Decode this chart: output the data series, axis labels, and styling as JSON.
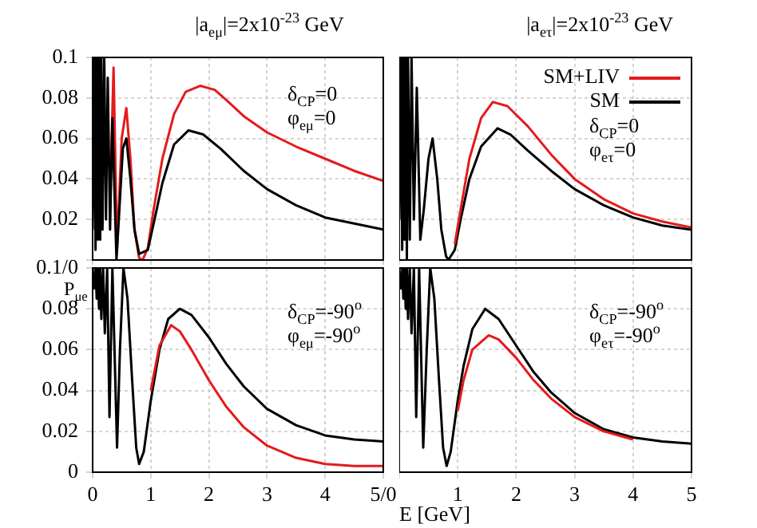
{
  "chart_data": [
    {
      "type": "line",
      "title": "|a$_{eμ}$|=2x10$^{-23}$ GeV",
      "annotations": [
        "δ$_{CP}$=0",
        "φ$_{eμ}$=0"
      ],
      "xlim": [
        0,
        5
      ],
      "xticks": [
        0,
        1,
        2,
        3,
        4,
        5
      ],
      "ylim": [
        0,
        0.1
      ],
      "yticks": [
        {
          "value": 0,
          "label": null
        },
        0.02,
        0.04,
        0.06,
        0.08,
        0.1
      ],
      "tick_labels": "y",
      "grid": true,
      "marker": "none",
      "series": [
        {
          "color": "#000000",
          "x": [
            0,
            0.03,
            0.05,
            0.07,
            0.09,
            0.11,
            0.13,
            0.15,
            0.17,
            0.2,
            0.23,
            0.26,
            0.3,
            0.34,
            0.41,
            0.47,
            0.52,
            0.58,
            0.65,
            0.72,
            0.8,
            0.95,
            1.05,
            1.2,
            1.4,
            1.65,
            1.9,
            2.2,
            2.6,
            3.0,
            3.5,
            4.0,
            4.5,
            5
          ],
          "values": [
            0.015,
            0.1,
            0.005,
            0.1,
            0.01,
            0.1,
            0.01,
            0.1,
            0.015,
            0.1,
            0.02,
            0.09,
            0.015,
            0.07,
            0.0,
            0.03,
            0.055,
            0.06,
            0.04,
            0.015,
            0.003,
            0.005,
            0.018,
            0.038,
            0.057,
            0.064,
            0.062,
            0.055,
            0.044,
            0.035,
            0.027,
            0.021,
            0.018,
            0.015
          ]
        },
        {
          "color": "#e41a1c",
          "x": [
            0.3,
            0.36,
            0.42,
            0.5,
            0.58,
            0.65,
            0.72,
            0.8,
            0.86,
            0.95,
            1.05,
            1.2,
            1.4,
            1.6,
            1.85,
            2.1,
            2.3,
            2.6,
            3.0,
            3.5,
            4.0,
            4.5,
            5
          ],
          "values": [
            0.03,
            0.095,
            0.005,
            0.06,
            0.075,
            0.05,
            0.015,
            0.001,
            0,
            0.006,
            0.025,
            0.05,
            0.072,
            0.083,
            0.086,
            0.084,
            0.079,
            0.071,
            0.063,
            0.056,
            0.05,
            0.044,
            0.039
          ]
        }
      ]
    },
    {
      "type": "line",
      "title": "|a$_{eτ}$|=2x10$^{-23}$ GeV",
      "annotations": [
        "δ$_{CP}$=0",
        "φ$_{eτ}$=0"
      ],
      "xlim": [
        0,
        5
      ],
      "xticks": [
        0,
        1,
        2,
        3,
        4,
        5
      ],
      "ylim": [
        0,
        0.1
      ],
      "yticks": [
        0,
        0.02,
        0.04,
        0.06,
        0.08,
        0.1
      ],
      "tick_labels": false,
      "grid": true,
      "marker": "none",
      "legend": "top right",
      "series": [
        {
          "name": "SM+LIV",
          "color": "#e41a1c",
          "x": [
            0.95,
            1.05,
            1.2,
            1.4,
            1.6,
            1.85,
            2.2,
            2.6,
            3.0,
            3.5,
            4.0,
            4.5,
            5
          ],
          "values": [
            0.008,
            0.025,
            0.05,
            0.07,
            0.078,
            0.076,
            0.066,
            0.052,
            0.04,
            0.03,
            0.023,
            0.019,
            0.016
          ]
        },
        {
          "name": "SM",
          "color": "#000000",
          "x": [
            0,
            0.03,
            0.05,
            0.07,
            0.09,
            0.11,
            0.13,
            0.15,
            0.18,
            0.21,
            0.25,
            0.3,
            0.36,
            0.42,
            0.5,
            0.57,
            0.65,
            0.72,
            0.8,
            0.84,
            0.95,
            1.05,
            1.2,
            1.4,
            1.68,
            1.9,
            2.2,
            2.6,
            3.0,
            3.5,
            4.0,
            4.5,
            5
          ],
          "values": [
            0.02,
            0.1,
            0.005,
            0.1,
            0.01,
            0.1,
            0.0,
            0.1,
            0.01,
            0.1,
            0.02,
            0.085,
            0.01,
            0.025,
            0.05,
            0.06,
            0.04,
            0.015,
            0.002,
            0,
            0.005,
            0.02,
            0.04,
            0.056,
            0.065,
            0.062,
            0.054,
            0.044,
            0.035,
            0.027,
            0.021,
            0.017,
            0.015
          ]
        }
      ]
    },
    {
      "type": "line",
      "ylabel": "P$_{μe}$",
      "annotations": [
        "δ$_{CP}$=-90$^{o}$",
        "φ$_{eμ}$=-90$^{o}$"
      ],
      "xlim": [
        0,
        5
      ],
      "xticks": [
        0,
        1,
        2,
        3,
        4,
        {
          "value": 5,
          "label": "5/0"
        }
      ],
      "ylim": [
        0,
        0.1
      ],
      "yticks": [
        0,
        0.02,
        0.04,
        0.06,
        0.08,
        {
          "value": 0.1,
          "label": "0.1/0"
        }
      ],
      "grid": true,
      "marker": "none",
      "series": [
        {
          "color": "#e41a1c",
          "x": [
            1.0,
            1.15,
            1.35,
            1.5,
            1.7,
            2.0,
            2.3,
            2.6,
            3.0,
            3.5,
            4.0,
            4.5,
            5
          ],
          "values": [
            0.04,
            0.062,
            0.072,
            0.069,
            0.06,
            0.045,
            0.032,
            0.022,
            0.013,
            0.007,
            0.004,
            0.003,
            0.003
          ]
        },
        {
          "color": "#000000",
          "x": [
            0,
            0.03,
            0.05,
            0.07,
            0.09,
            0.11,
            0.13,
            0.15,
            0.18,
            0.21,
            0.25,
            0.29,
            0.34,
            0.42,
            0.47,
            0.53,
            0.6,
            0.68,
            0.75,
            0.8,
            0.88,
            1.0,
            1.15,
            1.3,
            1.5,
            1.7,
            2.0,
            2.3,
            2.6,
            3.0,
            3.5,
            4.0,
            4.5,
            5
          ],
          "values": [
            0.1,
            0.09,
            0.1,
            0.085,
            0.1,
            0.08,
            0.1,
            0.075,
            0.1,
            0.068,
            0.1,
            0.027,
            0.1,
            0.012,
            0.06,
            0.1,
            0.085,
            0.045,
            0.012,
            0.004,
            0.01,
            0.035,
            0.06,
            0.075,
            0.08,
            0.077,
            0.066,
            0.053,
            0.042,
            0.031,
            0.023,
            0.018,
            0.016,
            0.015
          ]
        }
      ]
    },
    {
      "type": "line",
      "xlabel": "E [GeV]",
      "annotations": [
        "δ$_{CP}$=-90$^{o}$",
        "φ$_{eτ}$=-90$^{o}$"
      ],
      "xlim": [
        0,
        5
      ],
      "xticks": [
        {
          "value": 0,
          "label": null
        },
        1,
        2,
        3,
        4,
        5
      ],
      "ylim": [
        0,
        0.1
      ],
      "yticks": [
        0,
        0.02,
        0.04,
        0.06,
        0.08,
        0.1
      ],
      "tick_labels": "x",
      "grid": true,
      "marker": "none",
      "series": [
        {
          "color": "#e41a1c",
          "x": [
            1.0,
            1.1,
            1.25,
            1.53,
            1.7,
            2.0,
            2.3,
            2.6,
            3.0,
            3.5,
            4.0
          ],
          "values": [
            0.03,
            0.045,
            0.06,
            0.067,
            0.065,
            0.056,
            0.045,
            0.036,
            0.027,
            0.02,
            0.016
          ]
        },
        {
          "color": "#000000",
          "x": [
            0,
            0.03,
            0.05,
            0.07,
            0.09,
            0.11,
            0.13,
            0.15,
            0.18,
            0.21,
            0.25,
            0.29,
            0.34,
            0.41,
            0.47,
            0.53,
            0.6,
            0.68,
            0.75,
            0.81,
            0.88,
            1.0,
            1.1,
            1.25,
            1.47,
            1.7,
            2.0,
            2.3,
            2.6,
            3.0,
            3.5,
            4.0,
            4.5,
            5
          ],
          "values": [
            0.1,
            0.09,
            0.1,
            0.085,
            0.1,
            0.08,
            0.1,
            0.075,
            0.1,
            0.068,
            0.1,
            0.027,
            0.1,
            0.012,
            0.06,
            0.1,
            0.085,
            0.045,
            0.012,
            0.003,
            0.01,
            0.035,
            0.052,
            0.07,
            0.08,
            0.075,
            0.062,
            0.049,
            0.039,
            0.029,
            0.021,
            0.017,
            0.015,
            0.014
          ]
        }
      ]
    }
  ]
}
